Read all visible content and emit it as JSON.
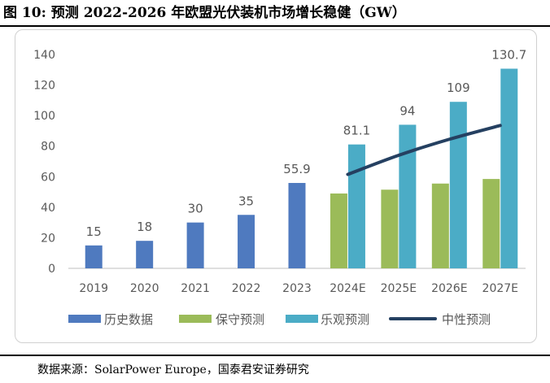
{
  "figure": {
    "title": "图 10:  预测 2022-2026 年欧盟光伏装机市场增长稳健（GW）",
    "source": "数据来源：SolarPower Europe，国泰君安证券研究"
  },
  "colors": {
    "historical": "#4F7ABF",
    "conservative": "#9BBB59",
    "optimistic": "#4BACC6",
    "medium_line": "#254061",
    "axis": "#BFBFBF",
    "text": "#595959"
  },
  "chart_data": {
    "type": "bar",
    "title": "预测 2022-2026 年欧盟光伏装机市场增长稳健（GW）",
    "categories": [
      "2019",
      "2020",
      "2021",
      "2022",
      "2023",
      "2024E",
      "2025E",
      "2026E",
      "2027E"
    ],
    "ylim": [
      0,
      140
    ],
    "yticks": [
      "0",
      "20",
      "40",
      "60",
      "80",
      "100",
      "120",
      "140"
    ],
    "xlabel": "",
    "ylabel": "",
    "legend_position": "bottom",
    "series": [
      {
        "name": "历史数据",
        "type": "bar",
        "values": [
          15,
          18,
          30,
          35,
          55.9,
          null,
          null,
          null,
          null
        ],
        "labels": [
          "15",
          "18",
          "30",
          "35",
          "55.9",
          "",
          "",
          "",
          ""
        ]
      },
      {
        "name": "保守预测",
        "type": "bar",
        "values": [
          null,
          null,
          null,
          null,
          null,
          49,
          51.5,
          55.5,
          58.5
        ],
        "labels": [
          "",
          "",
          "",
          "",
          "",
          "",
          "",
          "",
          ""
        ]
      },
      {
        "name": "乐观预测",
        "type": "bar",
        "values": [
          null,
          null,
          null,
          null,
          null,
          81.1,
          94,
          109,
          130.7
        ],
        "labels": [
          "",
          "",
          "",
          "",
          "",
          "81.1",
          "94",
          "109",
          "130.7"
        ]
      },
      {
        "name": "中性预测",
        "type": "line",
        "values": [
          null,
          null,
          null,
          null,
          null,
          61.5,
          74,
          84.5,
          93.5
        ],
        "labels": [
          "",
          "",
          "",
          "",
          "",
          "",
          "",
          "",
          ""
        ]
      }
    ]
  }
}
